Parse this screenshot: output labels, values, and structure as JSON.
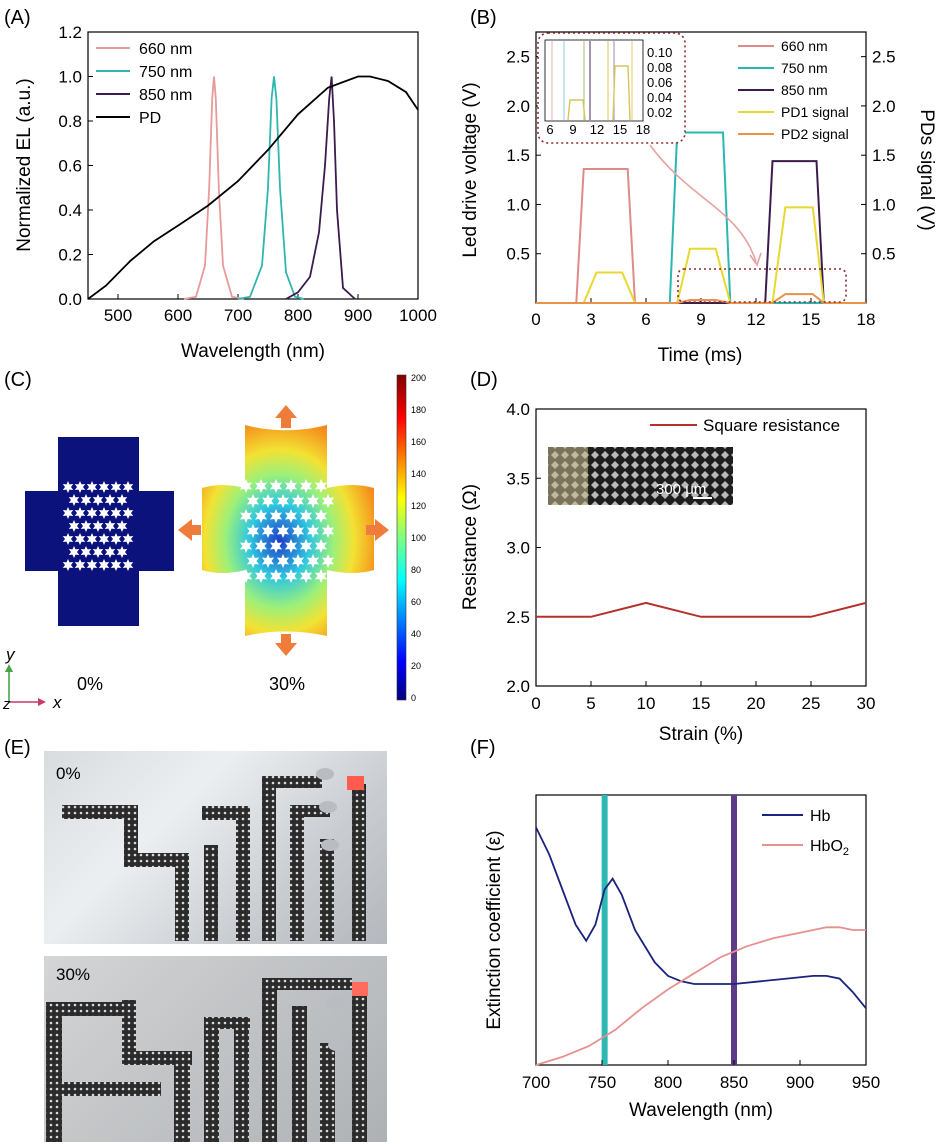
{
  "panels": {
    "A": {
      "label": "(A)",
      "chart_data": {
        "type": "line",
        "xlabel": "Wavelength (nm)",
        "ylabel": "Normalized EL (a.u.)",
        "xlim": [
          450,
          1000
        ],
        "ylim": [
          0,
          1.2
        ],
        "xticks": [
          "500",
          "600",
          "700",
          "800",
          "900",
          "1000"
        ],
        "yticks": [
          "0.0",
          "0.2",
          "0.4",
          "0.6",
          "0.8",
          "1.0",
          "1.2"
        ],
        "legend_position": "top-left",
        "series": [
          {
            "name": "660 nm",
            "color": "#e89a9a",
            "x": [
              610,
              630,
              645,
              652,
              657,
              660,
              663,
              668,
              675,
              690,
              710
            ],
            "y": [
              0,
              0.01,
              0.15,
              0.5,
              0.9,
              1.0,
              0.9,
              0.5,
              0.15,
              0.01,
              0
            ]
          },
          {
            "name": "750 nm",
            "color": "#2fb6b0",
            "x": [
              700,
              720,
              740,
              750,
              756,
              760,
              764,
              770,
              780,
              795,
              810
            ],
            "y": [
              0,
              0.01,
              0.15,
              0.5,
              0.9,
              1.0,
              0.9,
              0.5,
              0.12,
              0.01,
              0
            ]
          },
          {
            "name": "850 nm",
            "color": "#3c1b4e",
            "x": [
              780,
              800,
              820,
              835,
              845,
              852,
              856,
              860,
              865,
              875,
              895
            ],
            "y": [
              0,
              0.03,
              0.1,
              0.3,
              0.6,
              0.9,
              1.0,
              0.8,
              0.4,
              0.05,
              0
            ]
          },
          {
            "name": "PD",
            "color": "#000000",
            "x": [
              450,
              480,
              520,
              560,
              600,
              650,
              700,
              750,
              800,
              850,
              900,
              920,
              950,
              980,
              1000
            ],
            "y": [
              0.0,
              0.06,
              0.17,
              0.26,
              0.33,
              0.42,
              0.53,
              0.67,
              0.83,
              0.95,
              1.0,
              1.0,
              0.98,
              0.93,
              0.85
            ]
          }
        ]
      }
    },
    "B": {
      "label": "(B)",
      "chart_data": {
        "type": "line",
        "xlabel": "Time (ms)",
        "ylabel": "Led drive voltage (V)",
        "ylabel_right": "PDs signal (V)",
        "xlim": [
          0,
          18
        ],
        "ylim": [
          0,
          2.75
        ],
        "xticks": [
          "0",
          "3",
          "6",
          "9",
          "12",
          "15",
          "18"
        ],
        "yticks": [
          "0.5",
          "1.0",
          "1.5",
          "2.0",
          "2.5"
        ],
        "yticks_right": [
          "0.5",
          "1.0",
          "1.5",
          "2.0",
          "2.5"
        ],
        "legend_position": "top-right",
        "series": [
          {
            "name": "660 nm",
            "color": "#e08a8a",
            "x": [
              0,
              2.2,
              2.6,
              5.0,
              5.4,
              18
            ],
            "y": [
              0,
              0,
              1.36,
              1.36,
              0,
              0
            ]
          },
          {
            "name": "750 nm",
            "color": "#2ab7b3",
            "x": [
              0,
              7.3,
              7.7,
              10.2,
              10.6,
              18
            ],
            "y": [
              0,
              0,
              1.73,
              1.73,
              0,
              0
            ]
          },
          {
            "name": "850 nm",
            "color": "#3c1b4e",
            "x": [
              0,
              12.5,
              12.9,
              15.3,
              15.7,
              18
            ],
            "y": [
              0,
              0,
              1.44,
              1.44,
              0,
              0
            ]
          },
          {
            "name": "PD1 signal",
            "color": "#e8d832",
            "x": [
              0,
              2.6,
              3.3,
              4.7,
              5.4,
              7.7,
              8.4,
              9.8,
              10.6,
              12.9,
              13.6,
              15.1,
              15.7,
              18
            ],
            "y": [
              0,
              0,
              0.31,
              0.31,
              0,
              0,
              0.55,
              0.55,
              0,
              0,
              0.97,
              0.97,
              0,
              0
            ]
          },
          {
            "name": "PD2 signal",
            "color": "#e8924a",
            "x": [
              0,
              7.7,
              8.4,
              9.8,
              10.6,
              12.9,
              13.6,
              15.1,
              15.7,
              18
            ],
            "y": [
              0,
              0,
              0.03,
              0.03,
              0,
              0,
              0.09,
              0.09,
              0,
              0
            ]
          }
        ],
        "inset": {
          "xticks": [
            "6",
            "9",
            "12",
            "15",
            "18"
          ],
          "yticks": [
            "0.10",
            "0.08",
            "0.06",
            "0.04",
            "0.02"
          ]
        }
      }
    },
    "C": {
      "label": "(C)",
      "strain_left": "0%",
      "strain_right": "30%",
      "colorbar_ticks": [
        "200",
        "180",
        "160",
        "140",
        "120",
        "100",
        "80",
        "60",
        "40",
        "20",
        "0"
      ],
      "axis_x": "x",
      "axis_y": "y",
      "axis_z": "z"
    },
    "D": {
      "label": "(D)",
      "inset_scale": "300 μm",
      "chart_data": {
        "type": "line",
        "xlabel": "Strain (%)",
        "ylabel": "Resistance (Ω)",
        "xlim": [
          0,
          30
        ],
        "ylim": [
          2.0,
          4.0
        ],
        "xticks": [
          "0",
          "5",
          "10",
          "15",
          "20",
          "25",
          "30"
        ],
        "yticks": [
          "2.0",
          "2.5",
          "3.0",
          "3.5",
          "4.0"
        ],
        "legend_position": "top-right",
        "series": [
          {
            "name": "Square resistance",
            "color": "#b5322c",
            "x": [
              0,
              5,
              10,
              15,
              20,
              25,
              30
            ],
            "y": [
              2.5,
              2.5,
              2.6,
              2.5,
              2.5,
              2.5,
              2.6
            ]
          }
        ]
      }
    },
    "E": {
      "label": "(E)",
      "photo_top_label": "0%",
      "photo_bottom_label": "30%"
    },
    "F": {
      "label": "(F)",
      "chart_data": {
        "type": "line",
        "xlabel": "Wavelength (nm)",
        "ylabel": "Extinction coefficient (ε)",
        "xlim": [
          700,
          950
        ],
        "xticks": [
          "700",
          "750",
          "800",
          "850",
          "900",
          "950"
        ],
        "vertical_markers": [
          {
            "x": 752,
            "color": "#2db8b4"
          },
          {
            "x": 850,
            "color": "#5e3b86"
          }
        ],
        "legend_position": "top-right",
        "series": [
          {
            "name": "Hb",
            "color": "#1a237e",
            "x": [
              700,
              710,
              720,
              730,
              738,
              745,
              752,
              758,
              765,
              775,
              790,
              800,
              810,
              820,
              830,
              850,
              870,
              890,
              910,
              920,
              930,
              940,
              950
            ],
            "y": [
              0.88,
              0.78,
              0.65,
              0.52,
              0.46,
              0.52,
              0.65,
              0.69,
              0.63,
              0.5,
              0.38,
              0.33,
              0.31,
              0.3,
              0.3,
              0.3,
              0.31,
              0.32,
              0.33,
              0.33,
              0.32,
              0.27,
              0.21
            ]
          },
          {
            "name": "HbO2",
            "color": "#e69090",
            "x": [
              700,
              720,
              740,
              760,
              780,
              800,
              820,
              840,
              860,
              880,
              900,
              920,
              930,
              940,
              950
            ],
            "y": [
              0.0,
              0.03,
              0.07,
              0.13,
              0.21,
              0.28,
              0.34,
              0.4,
              0.44,
              0.47,
              0.49,
              0.51,
              0.51,
              0.5,
              0.5
            ]
          }
        ]
      }
    }
  }
}
